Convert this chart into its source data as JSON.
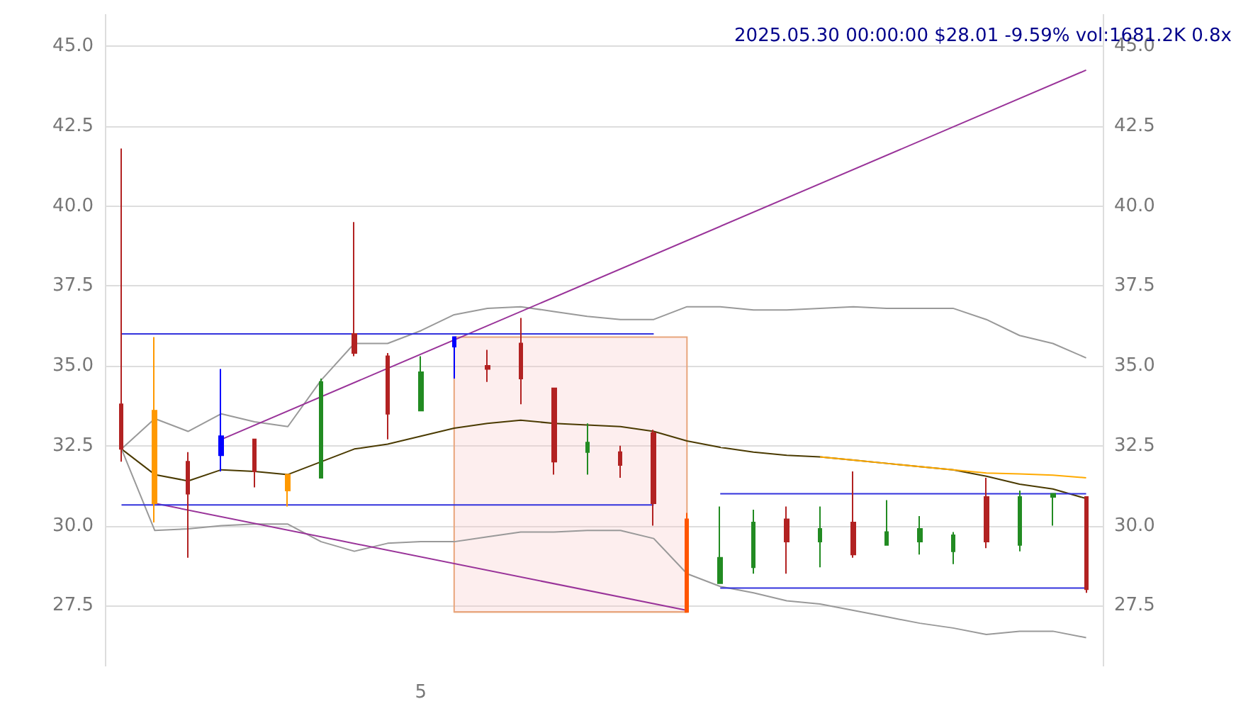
{
  "chart_data": {
    "type": "candlestick",
    "title": "2025.05.30 00:00:00 $28.01 -9.59% vol:1681.2K 0.8x",
    "categories": [
      null,
      null,
      null,
      null,
      null,
      null,
      null,
      null,
      null,
      "5",
      null,
      null,
      null,
      null,
      null,
      null,
      null,
      null,
      null,
      null,
      null,
      null,
      null,
      null,
      null,
      null,
      null,
      null,
      null,
      null
    ],
    "ohlc": [
      [
        33.8,
        41.8,
        32.0,
        32.4
      ],
      [
        33.6,
        35.9,
        30.1,
        30.7
      ],
      [
        32.0,
        32.3,
        29.0,
        31.0
      ],
      [
        32.2,
        34.9,
        31.7,
        32.8
      ],
      [
        32.7,
        32.7,
        31.2,
        31.7
      ],
      [
        31.6,
        31.6,
        30.6,
        31.1
      ],
      [
        31.5,
        34.6,
        31.5,
        34.5
      ],
      [
        36.0,
        39.5,
        35.3,
        35.4
      ],
      [
        35.3,
        35.4,
        32.7,
        33.5
      ],
      [
        33.6,
        35.3,
        33.6,
        34.8
      ],
      [
        35.6,
        35.9,
        34.6,
        35.9
      ],
      [
        35.0,
        35.5,
        34.5,
        34.9
      ],
      [
        35.7,
        36.5,
        33.8,
        34.6
      ],
      [
        34.3,
        34.3,
        31.6,
        32.0
      ],
      [
        32.3,
        33.2,
        31.6,
        32.6
      ],
      [
        32.3,
        32.5,
        31.5,
        31.9
      ],
      [
        32.9,
        33.0,
        30.0,
        30.7
      ],
      [
        30.2,
        30.4,
        27.3,
        27.3
      ],
      [
        28.2,
        30.6,
        28.2,
        29.0
      ],
      [
        28.7,
        30.5,
        28.5,
        30.1
      ],
      [
        30.2,
        30.6,
        28.5,
        29.5
      ],
      [
        29.5,
        30.6,
        28.7,
        29.9
      ],
      [
        30.1,
        31.7,
        29.0,
        29.1
      ],
      [
        29.4,
        30.8,
        29.4,
        29.8
      ],
      [
        29.5,
        30.3,
        29.1,
        29.9
      ],
      [
        29.2,
        29.8,
        28.8,
        29.7
      ],
      [
        30.9,
        31.5,
        29.3,
        29.5
      ],
      [
        29.4,
        31.1,
        29.2,
        30.9
      ],
      [
        30.9,
        31.0,
        30.0,
        31.0
      ],
      [
        30.9,
        30.9,
        27.9,
        28.01
      ]
    ],
    "colors": [
      "#b22222",
      "#ff9900",
      "#b22222",
      "#0000ff",
      "#b22222",
      "#ff9900",
      "#228b22",
      "#b22222",
      "#b22222",
      "#228b22",
      "#0000ff",
      "#b22222",
      "#b22222",
      "#b22222",
      "#228b22",
      "#b22222",
      "#b22222",
      "#ff5500",
      "#228b22",
      "#228b22",
      "#b22222",
      "#228b22",
      "#b22222",
      "#228b22",
      "#228b22",
      "#228b22",
      "#b22222",
      "#228b22",
      "#228b22",
      "#b22222"
    ],
    "series": [
      {
        "type": "line",
        "color": "#4a3a00",
        "values": [
          32.4,
          31.6,
          31.4,
          31.75,
          31.7,
          31.6,
          32.0,
          32.4,
          32.55,
          32.8,
          33.05,
          33.2,
          33.3,
          33.2,
          33.15,
          33.1,
          32.95,
          32.65,
          32.45,
          32.3,
          32.2,
          32.15,
          32.05,
          31.95,
          31.85,
          31.75,
          31.55,
          31.3,
          31.15,
          30.85
        ]
      },
      {
        "type": "line",
        "color": "#999999",
        "values": [
          32.4,
          33.35,
          32.95,
          33.5,
          33.25,
          33.1,
          34.55,
          35.7,
          35.7,
          36.1,
          36.6,
          36.8,
          36.85,
          36.7,
          36.55,
          36.45,
          36.45,
          36.85,
          36.85,
          36.75,
          36.75,
          36.8,
          36.85,
          36.8,
          36.8,
          36.8,
          36.45,
          35.95,
          35.7,
          35.25
        ]
      },
      {
        "type": "line",
        "color": "#999999",
        "values": [
          32.4,
          29.85,
          29.9,
          30.0,
          30.05,
          30.05,
          29.5,
          29.2,
          29.45,
          29.5,
          29.5,
          29.65,
          29.8,
          29.8,
          29.85,
          29.85,
          29.6,
          28.5,
          28.1,
          27.9,
          27.65,
          27.55,
          27.35,
          27.15,
          26.95,
          26.8,
          26.6,
          26.7,
          26.7,
          26.5
        ]
      },
      {
        "type": "line",
        "color": "#ffaa00",
        "values": [
          null,
          null,
          null,
          null,
          null,
          null,
          null,
          null,
          null,
          null,
          null,
          null,
          null,
          null,
          null,
          null,
          null,
          null,
          null,
          null,
          null,
          32.15,
          32.05,
          31.95,
          31.85,
          31.75,
          31.65,
          31.62,
          31.58,
          31.5
        ]
      },
      {
        "type": "line",
        "color": "#993399",
        "values": [
          null,
          null,
          null,
          32.7,
          null,
          null,
          null,
          null,
          null,
          null,
          null,
          null,
          null,
          null,
          null,
          null,
          null,
          null,
          null,
          null,
          null,
          null,
          null,
          null,
          null,
          null,
          null,
          null,
          null,
          44.25
        ]
      },
      {
        "type": "line",
        "color": "#993399",
        "values": [
          null,
          30.7,
          null,
          null,
          null,
          null,
          null,
          null,
          null,
          null,
          null,
          null,
          null,
          null,
          null,
          null,
          null,
          27.35,
          null,
          null,
          null,
          null,
          null,
          null,
          null,
          null,
          null,
          null,
          null,
          null
        ]
      },
      {
        "type": "line",
        "color": "#3333dd",
        "values": [
          36.0,
          null,
          null,
          null,
          null,
          null,
          null,
          null,
          null,
          null,
          null,
          null,
          null,
          null,
          null,
          null,
          36.0,
          null,
          null,
          null,
          null,
          null,
          null,
          null,
          null,
          null,
          null,
          null,
          null,
          null
        ]
      },
      {
        "type": "line",
        "color": "#3333dd",
        "values": [
          30.65,
          null,
          null,
          null,
          null,
          null,
          null,
          null,
          null,
          null,
          null,
          null,
          null,
          null,
          null,
          null,
          30.65,
          null,
          null,
          null,
          null,
          null,
          null,
          null,
          null,
          null,
          null,
          null,
          null,
          null
        ]
      },
      {
        "type": "line",
        "color": "#3333dd",
        "values": [
          null,
          null,
          null,
          null,
          null,
          null,
          null,
          null,
          null,
          null,
          null,
          null,
          null,
          null,
          null,
          null,
          null,
          null,
          31.0,
          null,
          null,
          null,
          null,
          null,
          null,
          null,
          null,
          null,
          null,
          31.0
        ]
      },
      {
        "type": "line",
        "color": "#3333dd",
        "values": [
          null,
          null,
          null,
          null,
          null,
          null,
          null,
          null,
          null,
          null,
          null,
          null,
          null,
          null,
          null,
          null,
          null,
          null,
          28.05,
          null,
          null,
          null,
          null,
          null,
          null,
          null,
          null,
          null,
          null,
          28.05
        ]
      },
      {
        "type": "line",
        "color": "#e8a57c",
        "values": [
          null,
          null,
          null,
          null,
          null,
          null,
          null,
          null,
          null,
          null,
          27.3,
          27.3,
          27.3,
          27.3,
          27.3,
          27.3,
          27.3,
          27.3,
          null,
          null,
          null,
          null,
          null,
          null,
          null,
          null,
          null,
          null,
          null,
          null
        ],
        "upper": [
          null,
          null,
          null,
          null,
          null,
          null,
          null,
          null,
          null,
          null,
          35.9,
          35.9,
          35.9,
          35.9,
          35.9,
          35.9,
          35.9,
          35.9,
          null,
          null,
          null,
          null,
          null,
          null,
          null,
          null,
          null,
          null,
          null,
          null
        ],
        "lower": [
          null,
          null,
          null,
          null,
          null,
          null,
          null,
          null,
          null,
          null,
          27.3,
          27.3,
          27.3,
          27.3,
          27.3,
          27.3,
          27.3,
          27.3,
          null,
          null,
          null,
          null,
          null,
          null,
          null,
          null,
          null,
          null,
          null,
          null
        ]
      }
    ],
    "ylim": [
      25.6,
      46.0
    ],
    "yticks": [
      27.5,
      {
        "value": 30,
        "label": "30.0"
      },
      32.5,
      {
        "value": 35,
        "label": "35.0"
      },
      37.5,
      {
        "value": 40,
        "label": "40.0"
      },
      42.5,
      {
        "value": 45,
        "label": "45.0"
      }
    ],
    "y2lim": [
      25.6,
      46.0
    ],
    "y2ticks": [
      27.5,
      {
        "value": 30,
        "label": "30.0"
      },
      32.5,
      {
        "value": 35,
        "label": "35.0"
      },
      37.5,
      {
        "value": 40,
        "label": "40.0"
      },
      42.5,
      {
        "value": 45,
        "label": "45.0"
      }
    ],
    "grid": true,
    "marker": "none"
  }
}
